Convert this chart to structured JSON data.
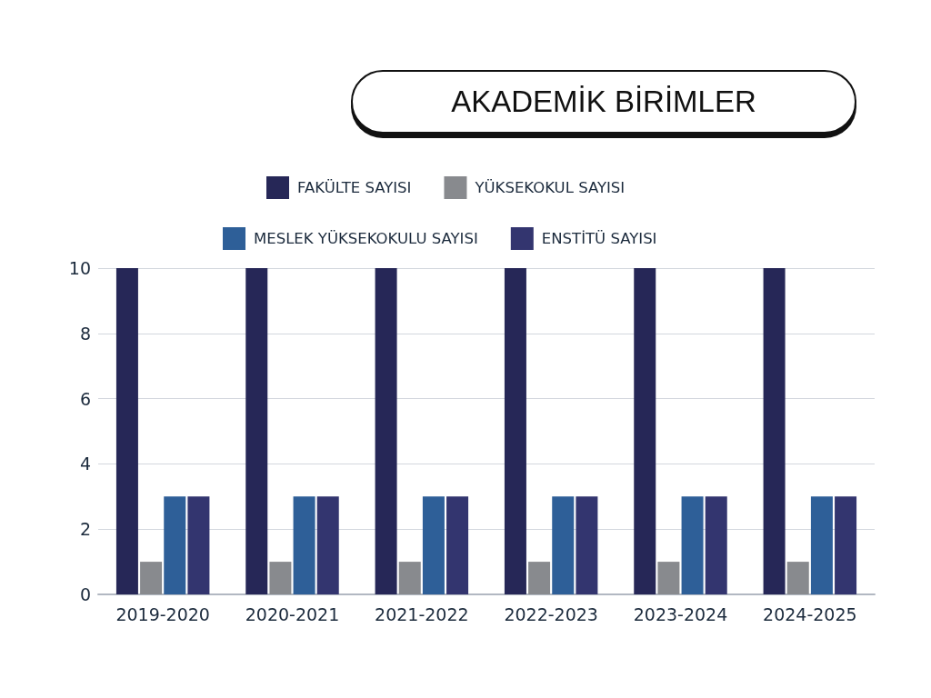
{
  "chart_data": {
    "type": "bar",
    "title": "AKADEMİK BİRİMLER",
    "categories": [
      "2019-2020",
      "2020-2021",
      "2021-2022",
      "2022-2023",
      "2023-2024",
      "2024-2025"
    ],
    "series": [
      {
        "name": "FAKÜLTE SAYISI",
        "color": "#262757",
        "values": [
          10,
          10,
          10,
          10,
          10,
          10
        ]
      },
      {
        "name": "YÜKSEKOKUL SAYISI",
        "color": "#888a8e",
        "values": [
          1,
          1,
          1,
          1,
          1,
          1
        ]
      },
      {
        "name": "MESLEK YÜKSEKOKULU SAYISI",
        "color": "#2e5f98",
        "values": [
          3,
          3,
          3,
          3,
          3,
          3
        ]
      },
      {
        "name": "ENSTİTÜ SAYISI",
        "color": "#33356f",
        "values": [
          3,
          3,
          3,
          3,
          3,
          3
        ]
      }
    ],
    "ylim": [
      0,
      10
    ],
    "yticks": [
      0,
      2,
      4,
      6,
      8,
      10
    ],
    "grid": "y",
    "legend": "top"
  }
}
